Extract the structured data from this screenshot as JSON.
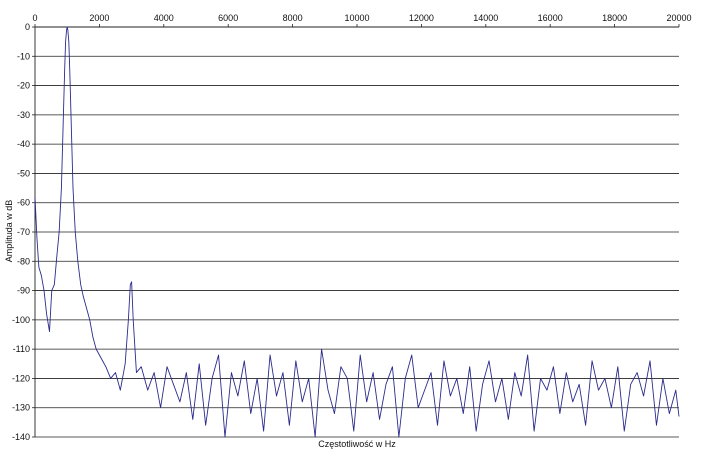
{
  "chart_data": {
    "type": "line",
    "title": "",
    "xlabel": "Częstotliwość w Hz",
    "ylabel": "Amplituda w dB",
    "xlim": [
      0,
      20000
    ],
    "ylim": [
      -140,
      0
    ],
    "x_ticks": [
      "0",
      "2000",
      "4000",
      "6000",
      "8000",
      "10000",
      "12000",
      "14000",
      "16000",
      "18000",
      "20000"
    ],
    "y_ticks": [
      "0",
      "-10",
      "-20",
      "-30",
      "-40",
      "-50",
      "-60",
      "-70",
      "-80",
      "-90",
      "-100",
      "-110",
      "-120",
      "-130",
      "-140"
    ],
    "grid": {
      "horizontal": true,
      "vertical": false
    },
    "legend": "none",
    "line_color": "#2b2b8c",
    "series": [
      {
        "x": [
          0,
          60,
          120,
          200,
          280,
          360,
          450,
          520,
          600,
          680,
          750,
          820,
          870,
          920,
          950,
          980,
          1000,
          1020,
          1050,
          1080,
          1130,
          1180,
          1250,
          1330,
          1420,
          1500,
          1600,
          1700,
          1800,
          1900,
          2000,
          2100,
          2200,
          2350,
          2500,
          2650,
          2800,
          2900,
          2960,
          3000,
          3050,
          3150,
          3300,
          3500,
          3700,
          3900,
          4100,
          4300,
          4500,
          4700,
          4900,
          5100,
          5300,
          5500,
          5700,
          5900,
          6100,
          6300,
          6500,
          6700,
          6900,
          7100,
          7300,
          7500,
          7700,
          7900,
          8100,
          8300,
          8500,
          8700,
          8900,
          9100,
          9300,
          9500,
          9700,
          9900,
          10100,
          10300,
          10500,
          10700,
          10900,
          11100,
          11300,
          11500,
          11700,
          11900,
          12100,
          12300,
          12500,
          12700,
          12900,
          13100,
          13300,
          13500,
          13700,
          13900,
          14100,
          14300,
          14500,
          14700,
          14900,
          15100,
          15300,
          15500,
          15700,
          15900,
          16100,
          16300,
          16500,
          16700,
          16900,
          17100,
          17300,
          17500,
          17700,
          17900,
          18100,
          18300,
          18500,
          18700,
          18900,
          19100,
          19300,
          19500,
          19700,
          19900,
          20000
        ],
        "y": [
          -58,
          -72,
          -82,
          -85,
          -90,
          -98,
          -104,
          -90,
          -88,
          -78,
          -70,
          -55,
          -35,
          -15,
          -5,
          -1,
          0,
          -1,
          -5,
          -15,
          -35,
          -55,
          -70,
          -80,
          -88,
          -92,
          -96,
          -100,
          -106,
          -110,
          -112,
          -114,
          -116,
          -120,
          -118,
          -124,
          -115,
          -100,
          -88,
          -87,
          -100,
          -118,
          -116,
          -124,
          -118,
          -130,
          -116,
          -122,
          -128,
          -118,
          -134,
          -115,
          -136,
          -120,
          -112,
          -140,
          -118,
          -126,
          -114,
          -132,
          -120,
          -138,
          -112,
          -126,
          -118,
          -136,
          -114,
          -128,
          -120,
          -140,
          -110,
          -124,
          -132,
          -116,
          -120,
          -138,
          -112,
          -128,
          -118,
          -134,
          -122,
          -116,
          -140,
          -120,
          -112,
          -130,
          -124,
          -118,
          -136,
          -114,
          -126,
          -120,
          -132,
          -116,
          -138,
          -122,
          -114,
          -128,
          -120,
          -134,
          -118,
          -126,
          -112,
          -138,
          -120,
          -124,
          -116,
          -132,
          -118,
          -128,
          -122,
          -136,
          -114,
          -124,
          -120,
          -130,
          -116,
          -138,
          -122,
          -118,
          -126,
          -114,
          -136,
          -120,
          -132,
          -124,
          -133
        ]
      }
    ]
  }
}
